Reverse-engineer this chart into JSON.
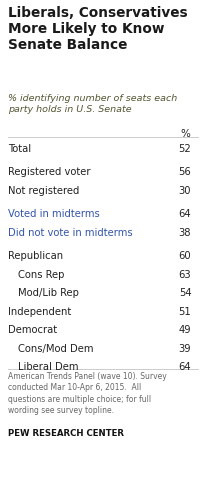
{
  "title": "Liberals, Conservatives\nMore Likely to Know\nSenate Balance",
  "subtitle": "% identifying number of seats each\nparty holds in U.S. Senate",
  "col_header": "%",
  "rows": [
    {
      "label": "Total",
      "value": 52,
      "indent": false,
      "group_gap": true,
      "text_color": "#222222"
    },
    {
      "label": "Registered voter",
      "value": 56,
      "indent": false,
      "group_gap": true,
      "text_color": "#222222"
    },
    {
      "label": "Not registered",
      "value": 30,
      "indent": false,
      "group_gap": false,
      "text_color": "#222222"
    },
    {
      "label": "Voted in midterms",
      "value": 64,
      "indent": false,
      "group_gap": true,
      "text_color": "#3355aa"
    },
    {
      "label": "Did not vote in midterms",
      "value": 38,
      "indent": false,
      "group_gap": false,
      "text_color": "#3355aa"
    },
    {
      "label": "Republican",
      "value": 60,
      "indent": false,
      "group_gap": true,
      "text_color": "#222222"
    },
    {
      "label": "Cons Rep",
      "value": 63,
      "indent": true,
      "group_gap": false,
      "text_color": "#222222"
    },
    {
      "label": "Mod/Lib Rep",
      "value": 54,
      "indent": true,
      "group_gap": false,
      "text_color": "#222222"
    },
    {
      "label": "Independent",
      "value": 51,
      "indent": false,
      "group_gap": false,
      "text_color": "#222222"
    },
    {
      "label": "Democrat",
      "value": 49,
      "indent": false,
      "group_gap": false,
      "text_color": "#222222"
    },
    {
      "label": "Cons/Mod Dem",
      "value": 39,
      "indent": true,
      "group_gap": false,
      "text_color": "#222222"
    },
    {
      "label": "Liberal Dem",
      "value": 64,
      "indent": true,
      "group_gap": false,
      "text_color": "#222222"
    }
  ],
  "footnote": "American Trends Panel (wave 10). Survey\nconducted Mar 10-Apr 6, 2015.  All\nquestions are multiple choice; for full\nwording see survey topline.",
  "source": "PEW RESEARCH CENTER",
  "bg_color": "#ffffff",
  "title_color": "#1a1a1a",
  "subtitle_color": "#555533",
  "value_color": "#222222",
  "footnote_color": "#666666",
  "source_color": "#111111",
  "line_color": "#cccccc"
}
